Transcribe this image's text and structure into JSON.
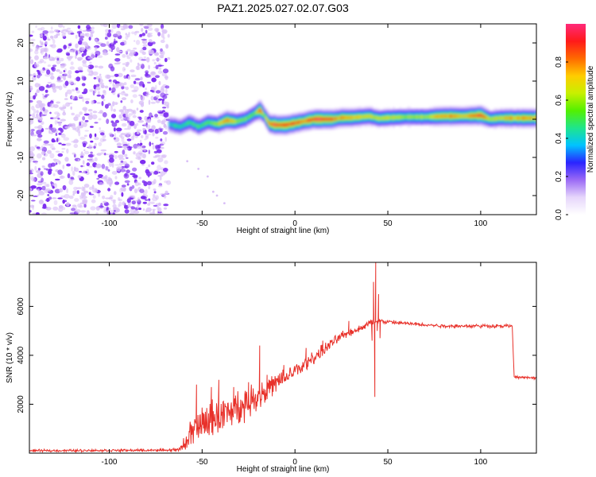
{
  "title": "PAZ1.2025.027.02.07.G03",
  "colors": {
    "snr_line": "#e8312a",
    "speckle_dark": "#7b2bf0",
    "speckle_light": "#d9bff7",
    "colormap": [
      "#ffffff",
      "#e6d6fb",
      "#9b6af5",
      "#2a24ff",
      "#00c3ff",
      "#1fe58c",
      "#53f000",
      "#c8f000",
      "#ffcc00",
      "#ff6a00",
      "#ff1a1a",
      "#ff2a7a"
    ]
  },
  "chart_data": [
    {
      "type": "heatmap",
      "xlabel": "Height of straight line (km)",
      "ylabel": "Frequency (Hz)",
      "xlim": [
        -143,
        130
      ],
      "ylim": [
        -25,
        25
      ],
      "x_ticks": [
        -100,
        -50,
        0,
        50,
        100
      ],
      "x_tick_labels": [
        "-100",
        "-50",
        "0",
        "50",
        "100"
      ],
      "y_ticks": [
        -20,
        -10,
        0,
        10,
        20
      ],
      "y_tick_labels": [
        "-20",
        "-10",
        "0",
        "10",
        "20"
      ],
      "colorbar": {
        "label": "Normalized spectral amplitude",
        "range": [
          0,
          1
        ],
        "ticks": [
          0.0,
          0.2,
          0.4,
          0.6,
          0.8
        ],
        "tick_labels": [
          "0.0",
          "0.2",
          "0.4",
          "0.6",
          "0.8"
        ]
      },
      "noise_region": {
        "x_range": [
          -143,
          -68
        ],
        "freq_range": [
          -25,
          25
        ]
      },
      "ridge": {
        "x": [
          -68,
          -62,
          -57,
          -52,
          -47,
          -42,
          -37,
          -32,
          -27,
          -22,
          -19,
          -17,
          -14,
          -10,
          -5,
          0,
          5,
          10,
          15,
          20,
          25,
          30,
          35,
          40,
          45,
          50,
          60,
          70,
          80,
          90,
          100,
          105,
          110,
          120,
          130
        ],
        "freq": [
          -1.3,
          -2.0,
          -0.8,
          -2.0,
          -0.8,
          -1.3,
          -0.3,
          -0.6,
          0.0,
          1.5,
          2.4,
          1.2,
          -1.2,
          -1.5,
          -1.5,
          -1.0,
          -0.5,
          0.0,
          0.0,
          0.0,
          0.4,
          0.4,
          0.6,
          0.8,
          0.2,
          0.4,
          0.6,
          0.6,
          0.8,
          0.8,
          1.0,
          0.0,
          0.3,
          0.3,
          0.3
        ],
        "amplitude": [
          0.45,
          0.45,
          0.5,
          0.5,
          0.55,
          0.6,
          0.85,
          0.6,
          0.55,
          0.55,
          0.8,
          0.6,
          0.85,
          0.9,
          0.85,
          0.85,
          0.8,
          0.95,
          0.95,
          0.8,
          0.75,
          0.7,
          0.7,
          0.65,
          0.65,
          0.65,
          0.6,
          0.6,
          0.8,
          0.7,
          0.9,
          0.6,
          0.7,
          0.75,
          0.75
        ]
      },
      "stray_points": {
        "x": [
          -58,
          -52,
          -47,
          -44,
          -42,
          -38
        ],
        "freq": [
          -11,
          -13,
          -15,
          -19,
          -20,
          -22
        ]
      }
    },
    {
      "type": "line",
      "xlabel": "Height of straight line (km)",
      "ylabel": "SNR (10 * v/v)",
      "xlim": [
        -143,
        130
      ],
      "ylim": [
        0,
        7800
      ],
      "x_ticks": [
        -100,
        -50,
        0,
        50,
        100
      ],
      "x_tick_labels": [
        "-100",
        "-50",
        "0",
        "50",
        "100"
      ],
      "y_ticks": [
        2000,
        4000,
        6000
      ],
      "y_tick_labels": [
        "2000",
        "4000",
        "6000"
      ],
      "profile": {
        "x": [
          -143,
          -70,
          -62,
          -55,
          -45,
          -35,
          -25,
          -15,
          -5,
          5,
          15,
          25,
          35,
          40,
          45,
          60,
          80,
          100,
          117,
          118,
          125,
          130
        ],
        "snr": [
          100,
          120,
          150,
          900,
          1400,
          1700,
          2100,
          2600,
          3100,
          3600,
          4200,
          4800,
          5100,
          5300,
          5400,
          5300,
          5200,
          5200,
          5200,
          3100,
          3100,
          3050
        ],
        "jitter": [
          60,
          60,
          80,
          900,
          900,
          800,
          800,
          600,
          450,
          380,
          300,
          220,
          150,
          200,
          120,
          90,
          90,
          90,
          90,
          60,
          60,
          60
        ]
      },
      "spikes": {
        "x": [
          -53,
          -51,
          -45,
          -41,
          -33,
          -25,
          -19,
          -15,
          -6,
          6,
          15,
          29,
          41.5,
          42.3,
          43.0,
          43.5,
          44.3,
          45.0,
          45.8
        ],
        "snr": [
          2800,
          800,
          2700,
          3000,
          2700,
          2900,
          4400,
          3200,
          3600,
          4300,
          4600,
          5400,
          4600,
          7000,
          2300,
          7800,
          5000,
          6500,
          4700
        ]
      }
    }
  ]
}
